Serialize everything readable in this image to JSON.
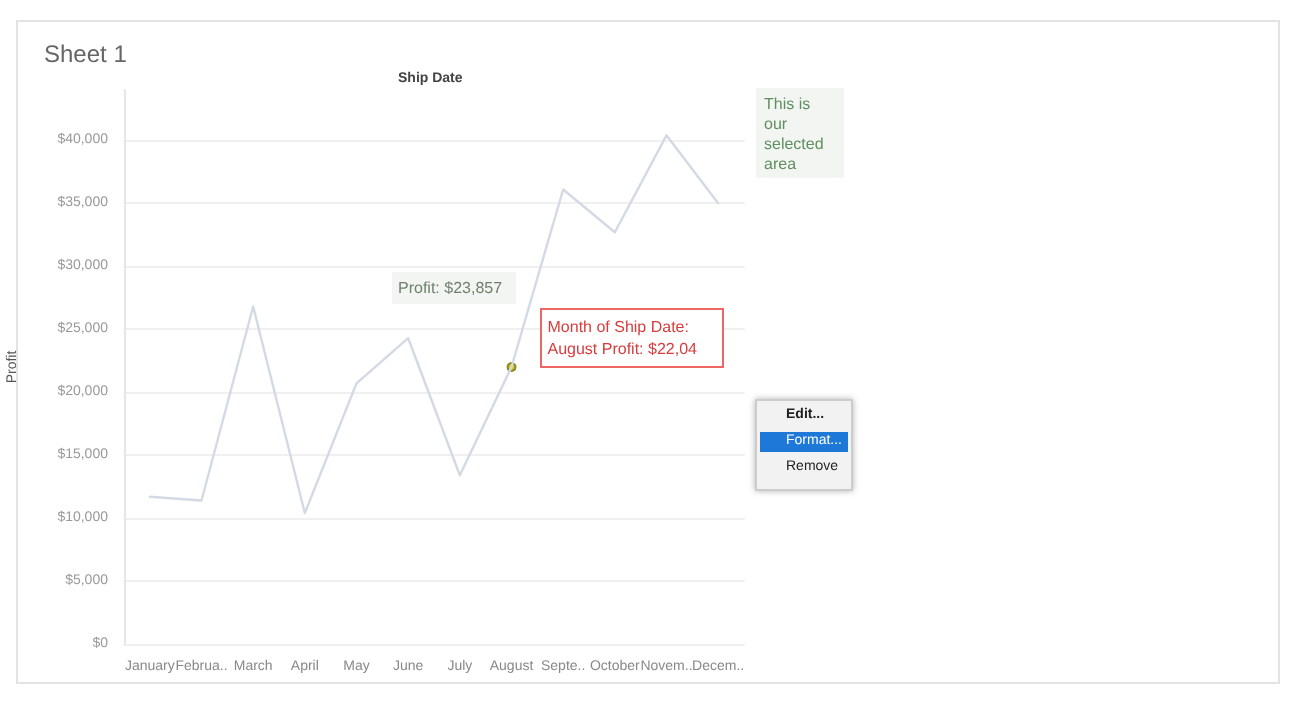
{
  "chart_data": {
    "type": "line",
    "title": "Sheet 1",
    "xlabel": "Ship Date",
    "ylabel": "Profit",
    "categories": [
      "January",
      "Februa..",
      "March",
      "April",
      "May",
      "June",
      "July",
      "August",
      "Septe..",
      "October",
      "Novem..",
      "Decem.."
    ],
    "series": [
      {
        "color": "#d3dae4",
        "values": [
          11700,
          11400,
          26800,
          10400,
          20700,
          24300,
          13400,
          22000,
          36100,
          32700,
          40400,
          35000
        ]
      }
    ],
    "ylim": [
      0,
      44000
    ],
    "yticks": [
      {
        "value": 0,
        "label": "$0"
      },
      {
        "value": 5000,
        "label": "$5,000"
      },
      {
        "value": 10000,
        "label": "$10,000"
      },
      {
        "value": 15000,
        "label": "$15,000"
      },
      {
        "value": 20000,
        "label": "$20,000"
      },
      {
        "value": 25000,
        "label": "$25,000"
      },
      {
        "value": 30000,
        "label": "$30,000"
      },
      {
        "value": 35000,
        "label": "$35,000"
      },
      {
        "value": 40000,
        "label": "$40,000"
      }
    ],
    "grid": "y",
    "marker": "none",
    "line_style": "solid",
    "annotations": [
      {
        "text": "Month of Ship Date: August Profit: $22,04",
        "x": "August",
        "y": 22000
      },
      "Profit: $23,857",
      "This is our selected area",
      "Edit...",
      "Format...",
      "Remove"
    ]
  }
}
